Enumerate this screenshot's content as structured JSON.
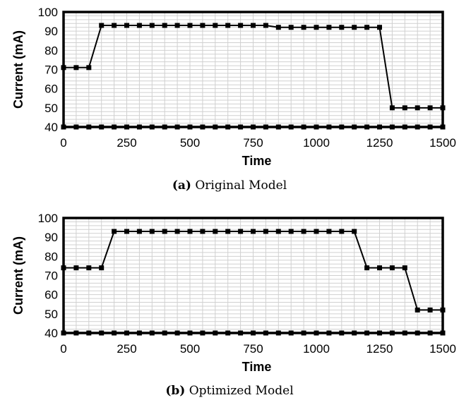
{
  "panels": [
    {
      "caption_tag": "(a)",
      "caption_text": "Original Model"
    },
    {
      "caption_tag": "(b)",
      "caption_text": "Optimized Model"
    }
  ],
  "chart_data": [
    {
      "type": "line",
      "xlabel": "Time",
      "ylabel": "Current (mA)",
      "xlim": [
        0,
        1500
      ],
      "ylim": [
        40,
        100
      ],
      "xticks": [
        0,
        250,
        500,
        750,
        1000,
        1250,
        1500
      ],
      "yticks": [
        40,
        50,
        60,
        70,
        80,
        90,
        100
      ],
      "grid": true,
      "x": [
        0,
        50,
        100,
        150,
        200,
        250,
        300,
        350,
        400,
        450,
        500,
        550,
        600,
        650,
        700,
        750,
        800,
        850,
        900,
        950,
        1000,
        1050,
        1100,
        1150,
        1200,
        1250,
        1300,
        1350,
        1400,
        1450,
        1500
      ],
      "series": [
        {
          "color": "#000000",
          "marker": "square",
          "values": [
            71,
            71,
            71,
            93,
            93,
            93,
            93,
            93,
            93,
            93,
            93,
            93,
            93,
            93,
            93,
            93,
            93,
            92,
            92,
            92,
            92,
            92,
            92,
            92,
            92,
            92,
            50,
            50,
            50,
            50,
            50
          ]
        },
        {
          "color": "#000000",
          "marker": "square",
          "values": [
            40,
            40,
            40,
            40,
            40,
            40,
            40,
            40,
            40,
            40,
            40,
            40,
            40,
            40,
            40,
            40,
            40,
            40,
            40,
            40,
            40,
            40,
            40,
            40,
            40,
            40,
            40,
            40,
            40,
            40,
            40
          ]
        }
      ]
    },
    {
      "type": "line",
      "xlabel": "Time",
      "ylabel": "Current (mA)",
      "xlim": [
        0,
        1500
      ],
      "ylim": [
        40,
        100
      ],
      "xticks": [
        0,
        250,
        500,
        750,
        1000,
        1250,
        1500
      ],
      "yticks": [
        40,
        50,
        60,
        70,
        80,
        90,
        100
      ],
      "grid": true,
      "x": [
        0,
        50,
        100,
        150,
        200,
        250,
        300,
        350,
        400,
        450,
        500,
        550,
        600,
        650,
        700,
        750,
        800,
        850,
        900,
        950,
        1000,
        1050,
        1100,
        1150,
        1200,
        1250,
        1300,
        1350,
        1400,
        1450,
        1500
      ],
      "series": [
        {
          "color": "#000000",
          "marker": "square",
          "values": [
            74,
            74,
            74,
            74,
            93,
            93,
            93,
            93,
            93,
            93,
            93,
            93,
            93,
            93,
            93,
            93,
            93,
            93,
            93,
            93,
            93,
            93,
            93,
            93,
            74,
            74,
            74,
            74,
            52,
            52,
            52
          ]
        },
        {
          "color": "#000000",
          "marker": "square",
          "values": [
            40,
            40,
            40,
            40,
            40,
            40,
            40,
            40,
            40,
            40,
            40,
            40,
            40,
            40,
            40,
            40,
            40,
            40,
            40,
            40,
            40,
            40,
            40,
            40,
            40,
            40,
            40,
            40,
            40,
            40,
            40
          ]
        }
      ]
    }
  ]
}
